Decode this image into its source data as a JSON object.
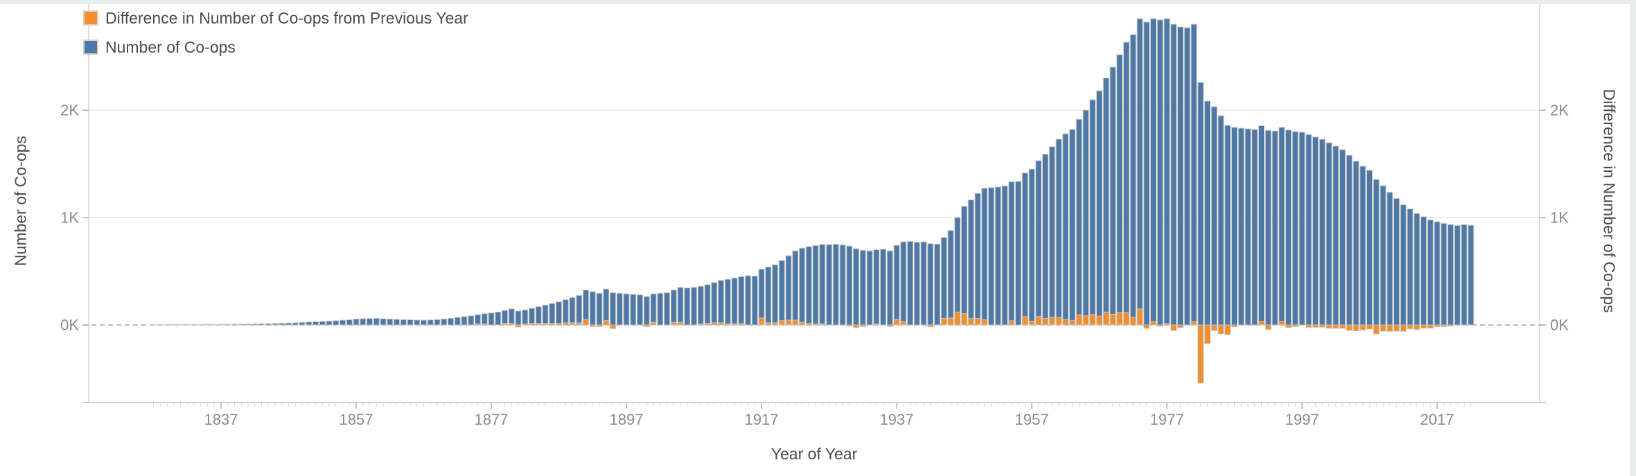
{
  "chart_data": {
    "type": "bar",
    "legend_position": "top-left",
    "grid": true,
    "x_axis": {
      "title": "Year of Year",
      "year_start": 1827,
      "year_end": 2022,
      "labeled_years": [
        1837,
        1857,
        1877,
        1897,
        1917,
        1937,
        1957,
        1977,
        1997,
        2017
      ]
    },
    "left_axis": {
      "title": "Number of Co-ops",
      "tick_labels": [
        "0K",
        "1K",
        "2K"
      ],
      "tick_values": [
        0,
        1000,
        2000
      ],
      "range": [
        -720,
        2990
      ]
    },
    "right_axis": {
      "title": "Difference in Number of Co-ops",
      "tick_labels": [
        "0K",
        "1K",
        "2K"
      ],
      "tick_values": [
        0,
        1000,
        2000
      ],
      "range": [
        -720,
        2990
      ]
    },
    "series": [
      {
        "name": "Number of Co-ops",
        "color": "#4e79a7",
        "axis": "left",
        "values": [
          2,
          2,
          3,
          3,
          4,
          4,
          5,
          5,
          6,
          6,
          7,
          7,
          8,
          8,
          9,
          10,
          11,
          12,
          14,
          16,
          18,
          20,
          24,
          28,
          30,
          33,
          36,
          40,
          44,
          48,
          55,
          58,
          60,
          62,
          58,
          55,
          52,
          50,
          48,
          46,
          45,
          47,
          50,
          55,
          62,
          70,
          78,
          85,
          95,
          105,
          112,
          120,
          135,
          150,
          130,
          140,
          155,
          170,
          185,
          200,
          215,
          235,
          255,
          275,
          325,
          310,
          295,
          335,
          300,
          295,
          290,
          285,
          280,
          265,
          290,
          295,
          300,
          325,
          350,
          345,
          350,
          360,
          375,
          395,
          415,
          425,
          437,
          450,
          458,
          455,
          520,
          540,
          560,
          600,
          645,
          690,
          715,
          730,
          740,
          750,
          748,
          752,
          745,
          735,
          710,
          695,
          690,
          700,
          705,
          690,
          742,
          774,
          778,
          770,
          774,
          757,
          753,
          815,
          880,
          1000,
          1105,
          1165,
          1225,
          1273,
          1279,
          1285,
          1294,
          1333,
          1337,
          1415,
          1451,
          1530,
          1590,
          1660,
          1730,
          1780,
          1820,
          1915,
          2000,
          2097,
          2180,
          2300,
          2400,
          2516,
          2632,
          2703,
          2852,
          2820,
          2852,
          2840,
          2852,
          2800,
          2775,
          2768,
          2800,
          2258,
          2084,
          2032,
          1948,
          1858,
          1840,
          1832,
          1826,
          1820,
          1855,
          1812,
          1806,
          1840,
          1815,
          1800,
          1795,
          1772,
          1750,
          1729,
          1697,
          1665,
          1632,
          1580,
          1525,
          1478,
          1440,
          1355,
          1296,
          1236,
          1178,
          1118,
          1081,
          1038,
          1008,
          978,
          961,
          946,
          935,
          926,
          934,
          928
        ]
      },
      {
        "name": "Difference in Number of Co-ops from Previous Year",
        "color": "#f28e2b",
        "axis": "right",
        "values": [
          0,
          0,
          1,
          0,
          1,
          0,
          1,
          0,
          1,
          0,
          1,
          0,
          1,
          0,
          1,
          1,
          1,
          1,
          2,
          2,
          2,
          2,
          4,
          4,
          2,
          3,
          3,
          4,
          4,
          4,
          7,
          3,
          2,
          2,
          -4,
          -3,
          -3,
          -2,
          -2,
          -2,
          -1,
          2,
          3,
          5,
          7,
          8,
          8,
          7,
          10,
          10,
          7,
          8,
          15,
          15,
          -20,
          10,
          15,
          15,
          15,
          15,
          15,
          20,
          20,
          20,
          50,
          -15,
          -15,
          40,
          -35,
          -5,
          -5,
          -5,
          -5,
          -15,
          25,
          5,
          5,
          25,
          25,
          -5,
          5,
          10,
          15,
          20,
          20,
          10,
          12,
          13,
          8,
          -3,
          65,
          20,
          20,
          40,
          45,
          45,
          25,
          15,
          10,
          10,
          -2,
          4,
          -7,
          -10,
          -25,
          -15,
          -5,
          10,
          5,
          -15,
          52,
          32,
          4,
          -8,
          4,
          -17,
          -4,
          62,
          65,
          120,
          105,
          60,
          60,
          48,
          6,
          6,
          9,
          39,
          4,
          78,
          36,
          79,
          60,
          70,
          70,
          50,
          40,
          95,
          85,
          97,
          83,
          120,
          100,
          116,
          116,
          71,
          149,
          -32,
          32,
          -12,
          12,
          -52,
          -25,
          -7,
          32,
          -542,
          -174,
          -52,
          -84,
          -90,
          -18,
          -8,
          -6,
          -6,
          35,
          -43,
          -6,
          34,
          -25,
          -15,
          -5,
          -23,
          -22,
          -21,
          -32,
          -32,
          -33,
          -52,
          -55,
          -47,
          -38,
          -85,
          -59,
          -60,
          -58,
          -60,
          -37,
          -43,
          -30,
          -30,
          -17,
          -15,
          -11,
          -9,
          8,
          -6
        ]
      }
    ]
  },
  "legend": {
    "items": [
      {
        "label": "Difference in Number of Co-ops from Previous Year",
        "color": "#f28e2b"
      },
      {
        "label": "Number of Co-ops",
        "color": "#4e79a7"
      }
    ]
  },
  "colors": {
    "bar_blue": "#4e79a7",
    "bar_orange": "#f28e2b",
    "bar_border": "#c9c9c9",
    "gridline": "#e7e7e7",
    "zero_line": "#bcbcbc",
    "axis_line": "#d4d4d4",
    "tick_minor": "#dadada",
    "tick_major": "#b0b0b0",
    "tick_text": "#8c8c8c",
    "title_text": "#4c4c4c",
    "chrome_edge": "#e7ebe9"
  }
}
